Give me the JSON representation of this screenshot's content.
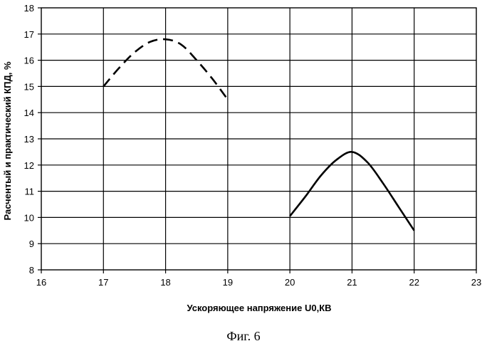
{
  "chart_data": {
    "type": "line",
    "xlabel": "Ускоряющее напряжение U0,КВ",
    "ylabel": "Расчентый и практический КПД, %",
    "xlim": [
      16,
      23
    ],
    "ylim": [
      8,
      18
    ],
    "xticks": [
      "16",
      "17",
      "18",
      "19",
      "20",
      "21",
      "22",
      "23"
    ],
    "yticks": [
      "8",
      "9",
      "10",
      "11",
      "12",
      "13",
      "14",
      "15",
      "16",
      "17",
      "18"
    ],
    "grid": true,
    "series": [
      {
        "style": "dashed",
        "color": "#000000",
        "points": [
          [
            17.0,
            15.0
          ],
          [
            17.25,
            15.7
          ],
          [
            17.5,
            16.3
          ],
          [
            17.75,
            16.7
          ],
          [
            18.0,
            16.8
          ],
          [
            18.25,
            16.6
          ],
          [
            18.5,
            16.0
          ],
          [
            18.75,
            15.3
          ],
          [
            19.0,
            14.5
          ]
        ]
      },
      {
        "style": "solid",
        "color": "#000000",
        "points": [
          [
            20.0,
            10.05
          ],
          [
            20.25,
            10.8
          ],
          [
            20.5,
            11.6
          ],
          [
            20.75,
            12.2
          ],
          [
            21.0,
            12.5
          ],
          [
            21.25,
            12.1
          ],
          [
            21.5,
            11.3
          ],
          [
            21.75,
            10.4
          ],
          [
            22.0,
            9.5
          ]
        ]
      }
    ]
  },
  "caption": "Фиг. 6"
}
